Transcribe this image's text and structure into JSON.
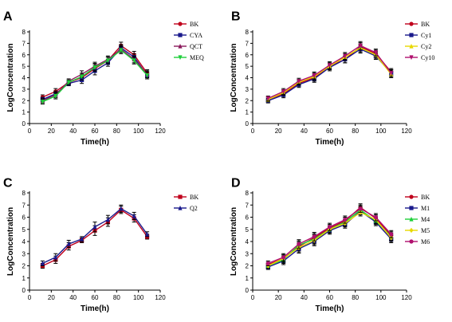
{
  "chart_data": [
    {
      "type": "line",
      "panel": "A",
      "xlabel": "Time(h)",
      "ylabel": "LogConcentration",
      "xlim": [
        0,
        120
      ],
      "ylim": [
        0,
        8
      ],
      "xticks": [
        0,
        20,
        40,
        60,
        80,
        100,
        120
      ],
      "yticks": [
        0,
        1,
        2,
        3,
        4,
        5,
        6,
        7,
        8
      ],
      "x": [
        12,
        24,
        36,
        48,
        60,
        72,
        84,
        96,
        108
      ],
      "legend_position": "right",
      "series": [
        {
          "name": "BK",
          "color": "#c0001c",
          "marker": "circle",
          "values": [
            2.3,
            2.8,
            3.6,
            4.0,
            4.8,
            5.5,
            6.8,
            6.0,
            4.4
          ],
          "errors": [
            0.2,
            0.25,
            0.2,
            0.3,
            0.35,
            0.3,
            0.3,
            0.3,
            0.3
          ]
        },
        {
          "name": "CYA",
          "color": "#1a1a8c",
          "marker": "square",
          "values": [
            2.1,
            2.6,
            3.5,
            3.8,
            4.6,
            5.3,
            6.6,
            5.8,
            4.2
          ],
          "errors": [
            0.2,
            0.25,
            0.2,
            0.3,
            0.35,
            0.3,
            0.3,
            0.3,
            0.3
          ]
        },
        {
          "name": "QCT",
          "color": "#8b1a5c",
          "marker": "triangle-up",
          "values": [
            2.0,
            2.5,
            3.7,
            4.3,
            5.0,
            5.6,
            6.5,
            5.6,
            4.3
          ],
          "errors": [
            0.2,
            0.25,
            0.2,
            0.3,
            0.35,
            0.3,
            0.3,
            0.3,
            0.3
          ]
        },
        {
          "name": "MEQ",
          "color": "#1fcf3a",
          "marker": "triangle-down",
          "values": [
            1.9,
            2.4,
            3.6,
            4.1,
            4.9,
            5.5,
            6.4,
            5.5,
            4.2
          ],
          "errors": [
            0.2,
            0.25,
            0.2,
            0.3,
            0.35,
            0.3,
            0.3,
            0.3,
            0.3
          ]
        }
      ]
    },
    {
      "type": "line",
      "panel": "B",
      "xlabel": "Time(h)",
      "ylabel": "LogConcentration",
      "xlim": [
        0,
        120
      ],
      "ylim": [
        0,
        8
      ],
      "xticks": [
        0,
        20,
        40,
        60,
        80,
        100,
        120
      ],
      "yticks": [
        0,
        1,
        2,
        3,
        4,
        5,
        6,
        7,
        8
      ],
      "x": [
        12,
        24,
        36,
        48,
        60,
        72,
        84,
        96,
        108
      ],
      "legend_position": "right",
      "series": [
        {
          "name": "BK",
          "color": "#c0001c",
          "marker": "circle",
          "values": [
            2.1,
            2.6,
            3.5,
            4.0,
            5.0,
            5.6,
            6.7,
            6.1,
            4.5
          ],
          "errors": [
            0.2,
            0.25,
            0.25,
            0.3,
            0.3,
            0.3,
            0.35,
            0.3,
            0.3
          ]
        },
        {
          "name": "Cy1",
          "color": "#1a1a8c",
          "marker": "square",
          "values": [
            2.0,
            2.5,
            3.4,
            3.9,
            4.9,
            5.6,
            6.5,
            5.9,
            4.4
          ],
          "errors": [
            0.2,
            0.25,
            0.25,
            0.3,
            0.3,
            0.3,
            0.35,
            0.3,
            0.3
          ]
        },
        {
          "name": "Cy2",
          "color": "#e8d800",
          "marker": "triangle-up",
          "values": [
            2.1,
            2.7,
            3.6,
            4.1,
            5.0,
            5.8,
            6.6,
            6.0,
            4.3
          ],
          "errors": [
            0.2,
            0.25,
            0.25,
            0.3,
            0.3,
            0.3,
            0.35,
            0.3,
            0.3
          ]
        },
        {
          "name": "Cy10",
          "color": "#b0106e",
          "marker": "triangle-down",
          "values": [
            2.2,
            2.8,
            3.7,
            4.2,
            5.1,
            5.9,
            6.8,
            6.2,
            4.4
          ],
          "errors": [
            0.2,
            0.25,
            0.25,
            0.3,
            0.3,
            0.3,
            0.35,
            0.3,
            0.3
          ]
        }
      ]
    },
    {
      "type": "line",
      "panel": "C",
      "xlabel": "Time(h)",
      "ylabel": "LogConcentration",
      "xlim": [
        0,
        120
      ],
      "ylim": [
        0,
        8
      ],
      "xticks": [
        0,
        20,
        40,
        60,
        80,
        100,
        120
      ],
      "yticks": [
        0,
        1,
        2,
        3,
        4,
        5,
        6,
        7,
        8
      ],
      "x": [
        12,
        24,
        36,
        48,
        60,
        72,
        84,
        96,
        108
      ],
      "legend_position": "right",
      "series": [
        {
          "name": "BK",
          "color": "#c0001c",
          "marker": "square",
          "values": [
            2.0,
            2.5,
            3.6,
            4.1,
            4.9,
            5.6,
            6.6,
            5.9,
            4.4
          ],
          "errors": [
            0.2,
            0.3,
            0.3,
            0.2,
            0.4,
            0.35,
            0.3,
            0.3,
            0.2
          ]
        },
        {
          "name": "Q2",
          "color": "#1a1a8c",
          "marker": "triangle-up",
          "values": [
            2.2,
            2.7,
            3.8,
            4.2,
            5.2,
            5.8,
            6.7,
            6.1,
            4.6
          ],
          "errors": [
            0.2,
            0.3,
            0.3,
            0.2,
            0.4,
            0.35,
            0.3,
            0.3,
            0.2
          ]
        }
      ]
    },
    {
      "type": "line",
      "panel": "D",
      "xlabel": "Time(h)",
      "ylabel": "LogConcentration",
      "xlim": [
        0,
        120
      ],
      "ylim": [
        0,
        8
      ],
      "xticks": [
        0,
        20,
        40,
        60,
        80,
        100,
        120
      ],
      "yticks": [
        0,
        1,
        2,
        3,
        4,
        5,
        6,
        7,
        8
      ],
      "x": [
        12,
        24,
        36,
        48,
        60,
        72,
        84,
        96,
        108
      ],
      "legend_position": "right",
      "series": [
        {
          "name": "BK",
          "color": "#c0001c",
          "marker": "circle",
          "values": [
            2.1,
            2.6,
            3.6,
            4.3,
            5.1,
            5.7,
            6.8,
            5.9,
            4.5
          ],
          "errors": [
            0.2,
            0.3,
            0.35,
            0.35,
            0.3,
            0.3,
            0.3,
            0.3,
            0.3
          ]
        },
        {
          "name": "M1",
          "color": "#1a1a8c",
          "marker": "square",
          "values": [
            1.9,
            2.4,
            3.4,
            4.0,
            4.9,
            5.4,
            6.5,
            5.6,
            4.2
          ],
          "errors": [
            0.2,
            0.3,
            0.35,
            0.35,
            0.3,
            0.3,
            0.3,
            0.3,
            0.3
          ]
        },
        {
          "name": "M4",
          "color": "#1fcf3a",
          "marker": "triangle-up",
          "values": [
            2.0,
            2.5,
            3.7,
            4.2,
            5.0,
            5.6,
            6.6,
            5.7,
            4.4
          ],
          "errors": [
            0.2,
            0.3,
            0.35,
            0.35,
            0.3,
            0.3,
            0.3,
            0.3,
            0.3
          ]
        },
        {
          "name": "M5",
          "color": "#e8d800",
          "marker": "diamond",
          "values": [
            2.0,
            2.6,
            3.5,
            4.1,
            5.0,
            5.5,
            6.4,
            5.8,
            4.3
          ],
          "errors": [
            0.2,
            0.3,
            0.35,
            0.35,
            0.3,
            0.3,
            0.3,
            0.3,
            0.3
          ]
        },
        {
          "name": "M6",
          "color": "#b0106e",
          "marker": "circle",
          "values": [
            2.2,
            2.7,
            3.8,
            4.4,
            5.2,
            5.8,
            6.7,
            6.0,
            4.6
          ],
          "errors": [
            0.2,
            0.3,
            0.35,
            0.35,
            0.3,
            0.3,
            0.3,
            0.3,
            0.3
          ]
        }
      ]
    }
  ]
}
